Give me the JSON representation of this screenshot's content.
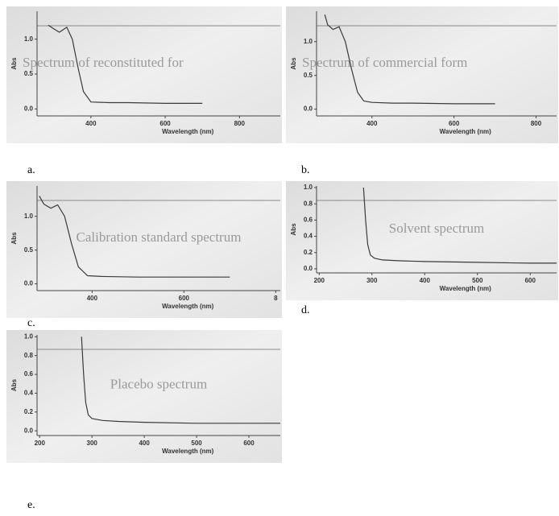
{
  "chart_data": [
    {
      "type": "line",
      "panel_label": "a.",
      "annotation": "Spectrum of reconstituted for",
      "y_label": "Abs",
      "x_label": "Wavelength (nm)",
      "color": "#3a3a3a",
      "x": [
        285,
        300,
        315,
        335,
        350,
        365,
        380,
        400,
        450,
        500,
        600,
        700
      ],
      "values": [
        1.2,
        1.15,
        1.1,
        1.17,
        1.0,
        0.6,
        0.25,
        0.1,
        0.09,
        0.09,
        0.08,
        0.08
      ],
      "xlim": [
        255,
        910
      ],
      "ylim": [
        -0.1,
        1.4
      ],
      "xticks": [
        400,
        600,
        800
      ],
      "yticks": [
        {
          "value": 0,
          "label": "0.0"
        },
        0.5,
        {
          "value": 1,
          "label": "1.0"
        }
      ]
    },
    {
      "type": "line",
      "panel_label": "b.",
      "annotation": "Spectrum of commercial form",
      "y_label": "Abs",
      "x_label": "Wavelength (nm)",
      "color": "#3a3a3a",
      "x": [
        285,
        292,
        305,
        320,
        335,
        350,
        365,
        380,
        400,
        450,
        500,
        600,
        700
      ],
      "values": [
        1.4,
        1.25,
        1.18,
        1.22,
        1.0,
        0.6,
        0.25,
        0.12,
        0.1,
        0.09,
        0.09,
        0.08,
        0.08
      ],
      "xlim": [
        265,
        850
      ],
      "ylim": [
        -0.1,
        1.45
      ],
      "xticks": [
        400,
        600,
        800
      ],
      "yticks": [
        {
          "value": 0,
          "label": "0.0"
        },
        0.5,
        {
          "value": 1,
          "label": "1.0"
        }
      ]
    },
    {
      "type": "line",
      "panel_label": "c.",
      "annotation": "Calibration standard spectrum",
      "y_label": "Abs",
      "x_label": "Wavelength (nm)",
      "color": "#3a3a3a",
      "x": [
        285,
        295,
        310,
        325,
        340,
        355,
        370,
        390,
        420,
        500,
        600,
        700
      ],
      "values": [
        1.3,
        1.18,
        1.12,
        1.17,
        1.0,
        0.6,
        0.25,
        0.12,
        0.11,
        0.1,
        0.1,
        0.1
      ],
      "xlim": [
        280,
        810
      ],
      "ylim": [
        -0.1,
        1.45
      ],
      "xticks": [
        400,
        600,
        {
          "value": 800,
          "label": "8"
        }
      ],
      "yticks": [
        {
          "value": 0,
          "label": "0.0"
        },
        0.5,
        {
          "value": 1,
          "label": "1.0"
        }
      ]
    },
    {
      "type": "line",
      "panel_label": "d.",
      "annotation": "Solvent spectrum",
      "y_label": "Abs",
      "x_label": "Wavelength (nm)",
      "color": "#3a3a3a",
      "x": [
        284,
        288,
        292,
        297,
        305,
        320,
        350,
        400,
        500,
        600,
        650
      ],
      "values": [
        1.0,
        0.6,
        0.3,
        0.17,
        0.13,
        0.11,
        0.1,
        0.09,
        0.08,
        0.07,
        0.07
      ],
      "xlim": [
        195,
        650
      ],
      "ylim": [
        -0.05,
        1.02
      ],
      "xticks": [
        200,
        300,
        400,
        500,
        600
      ],
      "yticks": [
        {
          "value": 0,
          "label": "0.0"
        },
        0.2,
        0.4,
        0.6,
        0.8,
        {
          "value": 1,
          "label": "1.0"
        }
      ]
    },
    {
      "type": "line",
      "panel_label": "e.",
      "annotation": "Placebo spectrum",
      "y_label": "Abs",
      "x_label": "Wavelength (nm)",
      "color": "#3a3a3a",
      "x": [
        280,
        284,
        288,
        293,
        300,
        320,
        350,
        400,
        500,
        600,
        660
      ],
      "values": [
        1.0,
        0.6,
        0.3,
        0.17,
        0.13,
        0.11,
        0.1,
        0.09,
        0.08,
        0.08,
        0.08
      ],
      "xlim": [
        195,
        660
      ],
      "ylim": [
        -0.05,
        1.02
      ],
      "xticks": [
        200,
        300,
        400,
        500,
        600
      ],
      "yticks": [
        {
          "value": 0,
          "label": "0.0"
        },
        0.2,
        0.4,
        0.6,
        0.8,
        {
          "value": 1,
          "label": "1.0"
        }
      ]
    }
  ]
}
